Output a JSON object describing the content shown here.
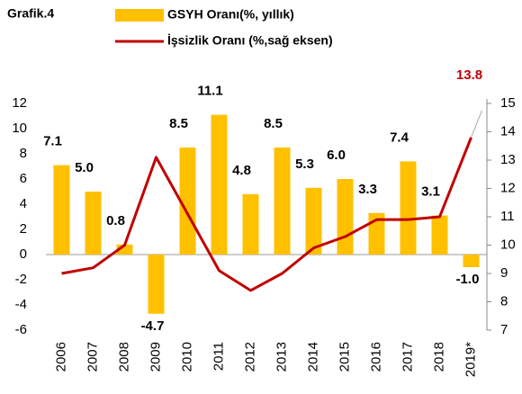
{
  "chart_data": {
    "type": "bar_line",
    "title": "Grafik.4",
    "categories": [
      "2006",
      "2007",
      "2008",
      "2009",
      "2010",
      "2011",
      "2012",
      "2013",
      "2014",
      "2015",
      "2016",
      "2017",
      "2018",
      "2019*"
    ],
    "series": [
      {
        "name": "GSYH Oranı(%, yıllık)",
        "type": "bar",
        "color": "#FFC000",
        "values": [
          7.1,
          5.0,
          0.8,
          -4.7,
          8.5,
          11.1,
          4.8,
          8.5,
          5.3,
          6.0,
          3.3,
          7.4,
          3.1,
          -1.0
        ],
        "value_labels": [
          "7.1",
          "5.0",
          "0.8",
          "-4.7",
          "8.5",
          "11.1",
          "4.8",
          "8.5",
          "5.3",
          "6.0",
          "3.3",
          "7.4",
          "3.1",
          "-1.0"
        ]
      },
      {
        "name": "İşsizlik Oranı (%,sağ eksen)",
        "type": "line",
        "color": "#C00000",
        "axis": "y2",
        "values": [
          9.0,
          9.2,
          10.0,
          13.1,
          11.1,
          9.1,
          8.4,
          9.0,
          9.9,
          10.3,
          10.9,
          10.9,
          11.0,
          13.8
        ]
      }
    ],
    "ylim": [
      -6,
      12
    ],
    "yticks": [
      -6,
      -4,
      -2,
      0,
      2,
      4,
      6,
      8,
      10,
      12
    ],
    "y2lim": [
      7,
      15
    ],
    "y2ticks": [
      7,
      8,
      9,
      10,
      11,
      12,
      13,
      14,
      15
    ],
    "legend": "top",
    "grid": false
  }
}
